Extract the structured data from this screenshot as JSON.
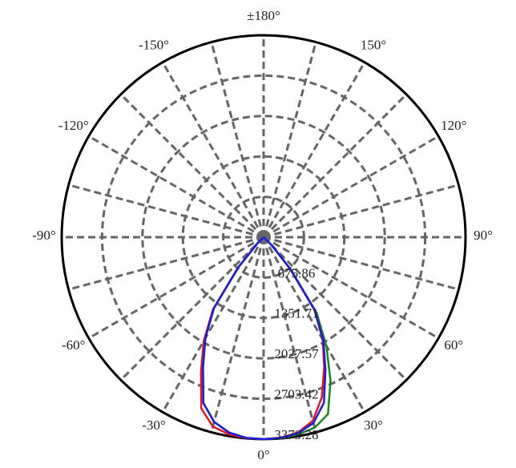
{
  "chart_data": {
    "type": "polar",
    "angle_ticks": [
      {
        "value": 0,
        "label": "0°"
      },
      {
        "value": 30,
        "label": "30°"
      },
      {
        "value": 60,
        "label": "60°"
      },
      {
        "value": 90,
        "label": "90°"
      },
      {
        "value": 120,
        "label": "120°"
      },
      {
        "value": 150,
        "label": "150°"
      },
      {
        "value": 180,
        "label": "±180°"
      },
      {
        "value": -150,
        "label": "-150°"
      },
      {
        "value": -120,
        "label": "-120°"
      },
      {
        "value": -90,
        "label": "-90°"
      },
      {
        "value": -60,
        "label": "-60°"
      },
      {
        "value": -30,
        "label": "-30°"
      }
    ],
    "rlim": [
      0,
      3379.28
    ],
    "rticks": [
      675.86,
      1351.71,
      2027.57,
      2703.42,
      3379.28
    ],
    "grid": true,
    "x": [
      -90,
      -85,
      -80,
      -75,
      -70,
      -65,
      -60,
      -55,
      -50,
      -45,
      -40,
      -35,
      -30,
      -25,
      -20,
      -15,
      -10,
      -5,
      0,
      5,
      10,
      15,
      20,
      25,
      30,
      35,
      40,
      45,
      50,
      55,
      60,
      65,
      70,
      75,
      80,
      85,
      90
    ],
    "series": [
      {
        "color": "#e8141e",
        "values": [
          0,
          0,
          0,
          0,
          0,
          0,
          0,
          0,
          0,
          160,
          680,
          1480,
          2000,
          2480,
          3050,
          3280,
          3350,
          3375,
          3379,
          3365,
          3320,
          3180,
          2850,
          2400,
          1980,
          1480,
          680,
          180,
          0,
          0,
          0,
          0,
          0,
          0,
          0,
          0,
          0
        ]
      },
      {
        "color": "#17871e",
        "values": [
          0,
          0,
          0,
          0,
          0,
          0,
          0,
          0,
          0,
          150,
          650,
          1450,
          1950,
          2400,
          2950,
          3200,
          3320,
          3370,
          3379,
          3375,
          3350,
          3300,
          3150,
          2650,
          2100,
          1550,
          720,
          200,
          0,
          0,
          0,
          0,
          0,
          0,
          0,
          0,
          0
        ]
      },
      {
        "color": "#1c1ce0",
        "values": [
          0,
          0,
          0,
          0,
          0,
          0,
          0,
          0,
          0,
          150,
          650,
          1450,
          1950,
          2400,
          2950,
          3200,
          3320,
          3370,
          3379,
          3370,
          3330,
          3220,
          2950,
          2450,
          2000,
          1500,
          700,
          200,
          0,
          0,
          0,
          0,
          0,
          0,
          0,
          0,
          0
        ]
      }
    ]
  }
}
